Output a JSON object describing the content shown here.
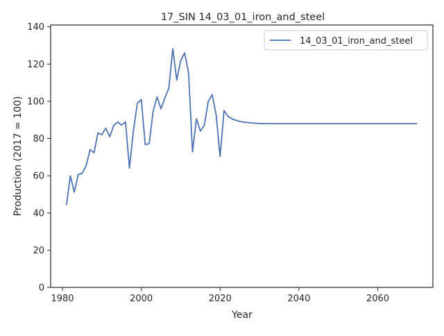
{
  "chart_data": {
    "type": "line",
    "title": "17_SIN 14_03_01_iron_and_steel",
    "xlabel": "Year",
    "ylabel": "Production (2017 = 100)",
    "xlim": [
      1977,
      2074
    ],
    "ylim": [
      0,
      141
    ],
    "x_ticks": [
      1980,
      2000,
      2020,
      2040,
      2060
    ],
    "x_tick_labels": [
      "1980",
      "2000",
      "2020",
      "2040",
      "2060"
    ],
    "y_ticks": [
      0,
      20,
      40,
      60,
      80,
      100,
      120,
      140
    ],
    "y_tick_labels": [
      "0",
      "20",
      "40",
      "60",
      "80",
      "100",
      "120",
      "140"
    ],
    "grid": false,
    "legend_position": "top-right",
    "colors": {
      "series": "#4c72b0",
      "axes": "#262626"
    },
    "series": [
      {
        "name": "14_03_01_iron_and_steel",
        "x": [
          1981,
          1982,
          1983,
          1984,
          1985,
          1986,
          1987,
          1988,
          1989,
          1990,
          1991,
          1992,
          1993,
          1994,
          1995,
          1996,
          1997,
          1998,
          1999,
          2000,
          2001,
          2002,
          2003,
          2004,
          2005,
          2006,
          2007,
          2008,
          2009,
          2010,
          2011,
          2012,
          2013,
          2014,
          2015,
          2016,
          2017,
          2018,
          2019,
          2020,
          2021,
          2022,
          2023,
          2024,
          2025,
          2026,
          2027,
          2028,
          2029,
          2030,
          2031,
          2032,
          2033,
          2034,
          2035,
          2036,
          2037,
          2038,
          2039,
          2040,
          2041,
          2042,
          2043,
          2044,
          2045,
          2046,
          2047,
          2048,
          2049,
          2050,
          2051,
          2052,
          2053,
          2054,
          2055,
          2056,
          2057,
          2058,
          2059,
          2060,
          2061,
          2062,
          2063,
          2064,
          2065,
          2066,
          2067,
          2068,
          2069,
          2070
        ],
        "values": [
          44.2,
          60.0,
          51.2,
          60.6,
          61.3,
          65.3,
          74.0,
          72.4,
          83.0,
          82.1,
          85.6,
          81.0,
          87.0,
          88.8,
          87.2,
          89.0,
          64.0,
          84.2,
          98.9,
          101.0,
          76.8,
          77.2,
          94.6,
          102.3,
          96.0,
          101.8,
          107.2,
          128.3,
          111.4,
          121.9,
          126.0,
          115.3,
          72.8,
          90.6,
          84.0,
          87.2,
          100.0,
          103.6,
          92.6,
          70.4,
          95.0,
          92.0,
          90.6,
          89.8,
          89.2,
          88.8,
          88.6,
          88.4,
          88.2,
          88.1,
          88.05,
          88.0,
          88.0,
          88.0,
          88.0,
          88.0,
          88.0,
          88.0,
          88.0,
          88.0,
          88.0,
          88.0,
          88.0,
          88.0,
          88.0,
          88.0,
          88.0,
          88.0,
          88.0,
          88.0,
          88.0,
          88.0,
          88.0,
          88.0,
          88.0,
          88.0,
          88.0,
          88.0,
          88.0,
          88.0,
          88.0,
          88.0,
          88.0,
          88.0,
          88.0,
          88.0,
          88.0,
          88.0,
          88.0,
          88.0
        ]
      }
    ]
  }
}
